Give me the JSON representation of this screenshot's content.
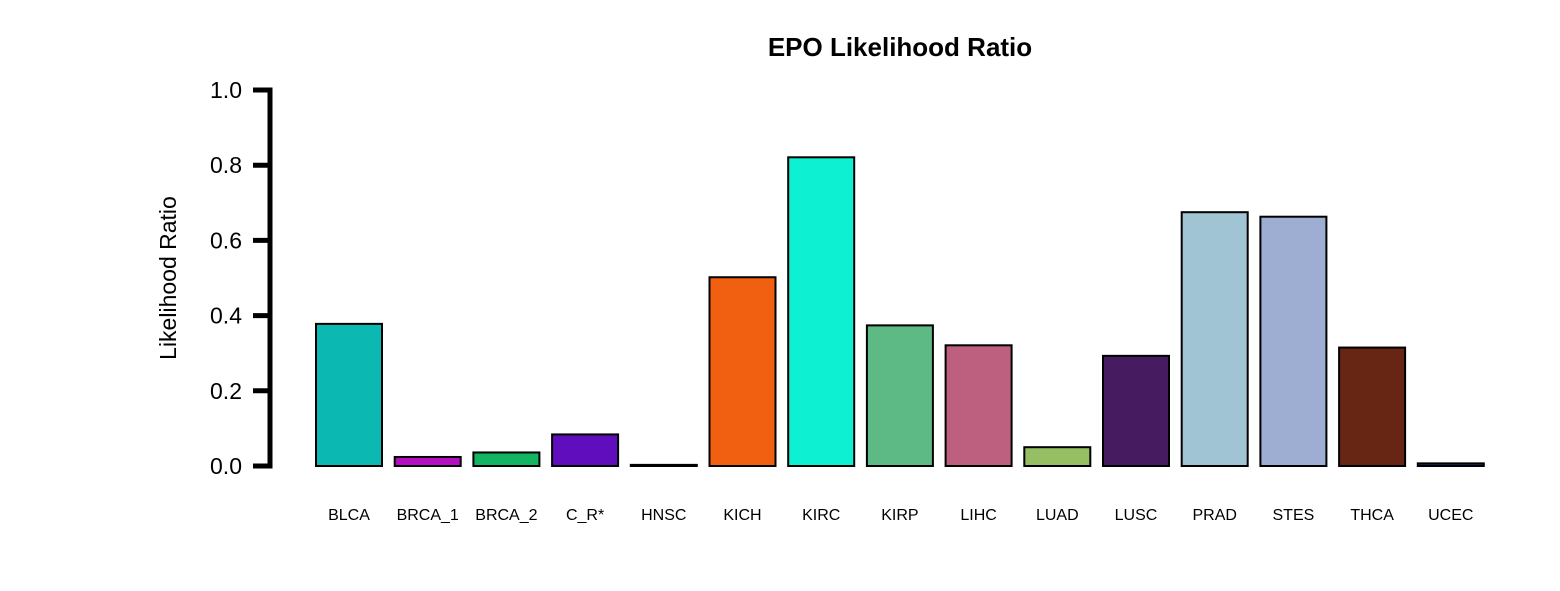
{
  "chart_data": {
    "type": "bar",
    "title": "EPO Likelihood Ratio",
    "xlabel": "",
    "ylabel": "Likelihood Ratio",
    "ylim": [
      0,
      1
    ],
    "yticks": [
      "0.0",
      "0.2",
      "0.4",
      "0.6",
      "0.8",
      "1.0"
    ],
    "grid": false,
    "categories": [
      "BLCA",
      "BRCA_1",
      "BRCA_2",
      "C_R*",
      "HNSC",
      "KICH",
      "KIRC",
      "KIRP",
      "LIHC",
      "LUAD",
      "LUSC",
      "PRAD",
      "STES",
      "THCA",
      "UCEC"
    ],
    "values": [
      0.378,
      0.024,
      0.036,
      0.084,
      0.003,
      0.502,
      0.821,
      0.374,
      0.321,
      0.05,
      0.293,
      0.675,
      0.663,
      0.315,
      0.007
    ],
    "colors": [
      "#0BB9B2",
      "#B30EC3",
      "#12B561",
      "#600EBD",
      "#2E0F63",
      "#F16010",
      "#0EF0D2",
      "#5DBA84",
      "#BD6080",
      "#96BE62",
      "#461B60",
      "#A0C4D3",
      "#9EADD2",
      "#662613",
      "#1A2E63"
    ]
  }
}
